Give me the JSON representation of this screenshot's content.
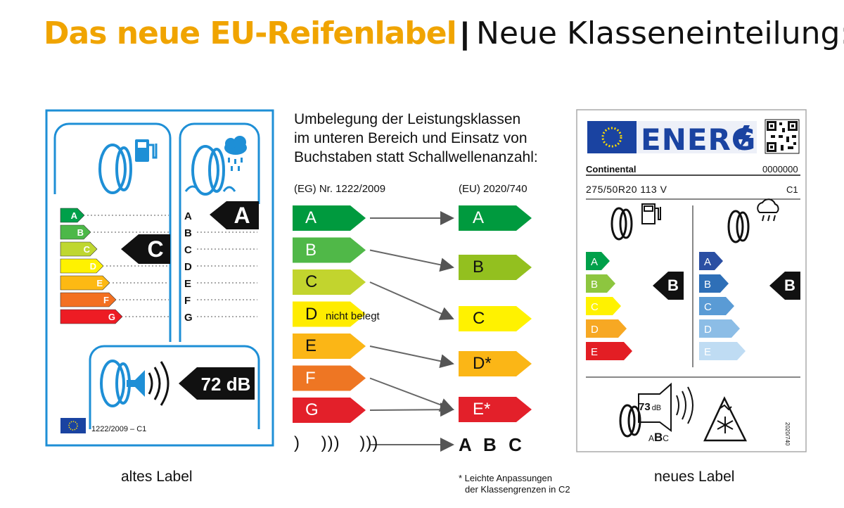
{
  "header": {
    "title_bold": "Das neue EU-Reifenlabel",
    "separator": "|",
    "title_light": "Neue Klasseneinteilung:"
  },
  "old_label": {
    "caption": "altes Label",
    "classes": [
      "A",
      "B",
      "C",
      "D",
      "E",
      "F",
      "G"
    ],
    "fuel_rating": "C",
    "wet_rating": "A",
    "noise": "72 dB",
    "footer": "1222/2009 – C1",
    "colors": [
      "#00a04a",
      "#4cb848",
      "#bfd730",
      "#fff200",
      "#fdb913",
      "#f37021",
      "#ed1c24"
    ],
    "frame_color": "#1e8fd6"
  },
  "middle": {
    "intro": [
      "Umbelegung der Leistungsklassen",
      "im unteren Bereich und Einsatz von",
      "Buchstaben statt Schallwellenanzahl:"
    ],
    "left_heading": "(EG) Nr. 1222/2009",
    "right_heading": "(EU) 2020/740",
    "old_classes": [
      "A",
      "B",
      "C",
      "D",
      "E",
      "F",
      "G"
    ],
    "not_assigned": "nicht belegt",
    "new_classes": [
      "A",
      "B",
      "C",
      "D*",
      "E*"
    ],
    "old_noise": [
      ")",
      ")))",
      ")))"
    ],
    "new_noise": [
      "A",
      "B",
      "C"
    ],
    "footnote": [
      "* Leichte Anpassungen",
      "der Klassengrenzen in C2"
    ],
    "colors": {
      "A": "#009a3e",
      "B": "#50b848",
      "C": "#c2d42e",
      "D": "#ffec00",
      "E": "#fbb616",
      "F": "#ee7623",
      "G": "#e3202a",
      "nA": "#009a3e",
      "nB": "#93c01f",
      "nC": "#fff200",
      "nD": "#fbb616",
      "nE": "#e3202a"
    }
  },
  "new_label": {
    "caption": "neues Label",
    "energy": "ENERG",
    "brand": "Continental",
    "code": "0000000",
    "size": "275/50R20 113 V",
    "tyre_class": "C1",
    "fuel_classes": [
      "A",
      "B",
      "C",
      "D",
      "E"
    ],
    "wet_classes": [
      "A",
      "B",
      "C",
      "D",
      "E"
    ],
    "fuel_rating": "B",
    "wet_rating": "B",
    "noise_db": "73",
    "noise_unit": "dB",
    "noise_class": [
      "A",
      "B",
      "C"
    ],
    "regulation": "2020/740",
    "fuel_colors": [
      "#00a04a",
      "#8dc63f",
      "#fff200",
      "#f7a823",
      "#e31e24"
    ],
    "wet_colors": [
      "#2b4fa3",
      "#2e6fb7",
      "#5a9bd5",
      "#8cbde6",
      "#bfdcf3"
    ]
  }
}
